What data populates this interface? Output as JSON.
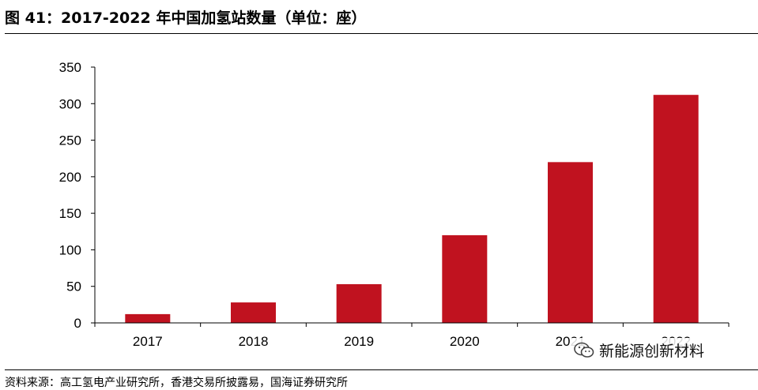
{
  "figure": {
    "title": "图 41：2017-2022 年中国加氢站数量（单位：座）",
    "source": "资料来源：高工氢电产业研究所，香港交易所披露易，国海证券研究所"
  },
  "watermark": {
    "icon": "wechat-icon",
    "text": "新能源创新材料"
  },
  "colors": {
    "bar": "#c0121f",
    "axis": "#000000"
  },
  "chart_data": {
    "type": "bar",
    "title": "2017-2022 年中国加氢站数量（单位：座）",
    "categories": [
      "2017",
      "2018",
      "2019",
      "2020",
      "2021",
      "2022"
    ],
    "values": [
      12,
      28,
      53,
      120,
      220,
      312
    ],
    "xlabel": "",
    "ylabel": "",
    "ylim": [
      0,
      350
    ],
    "yticks": [
      0,
      50,
      100,
      150,
      200,
      250,
      300,
      350
    ],
    "grid": false,
    "legend": "none"
  }
}
